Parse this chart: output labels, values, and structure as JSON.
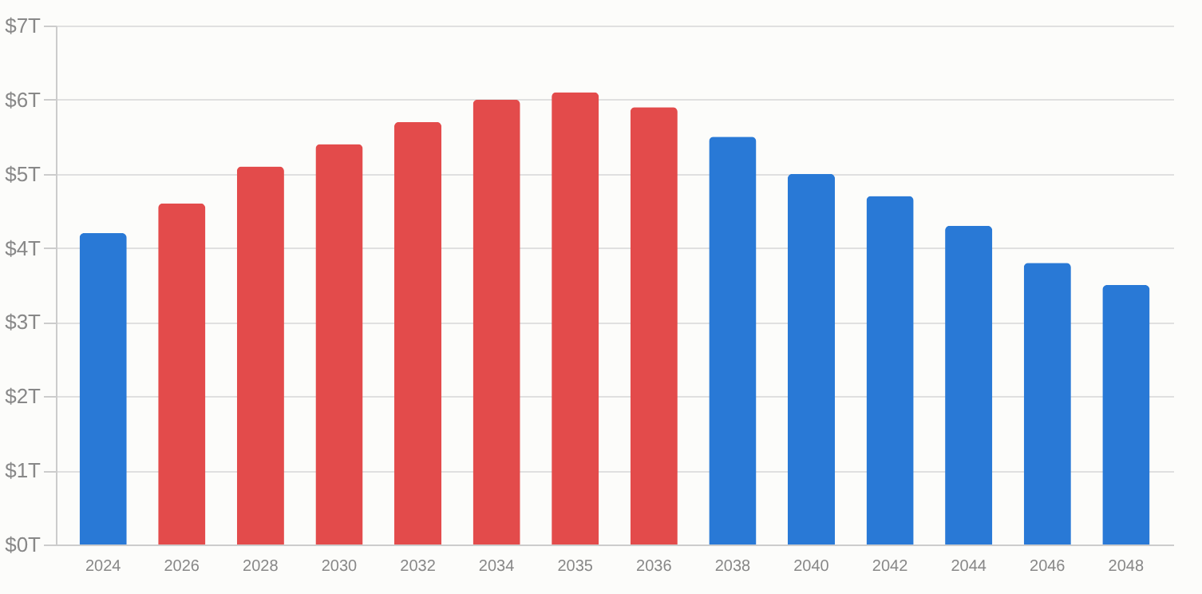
{
  "chart_data": {
    "type": "bar",
    "categories": [
      "2024",
      "2026",
      "2028",
      "2030",
      "2032",
      "2034",
      "2035",
      "2036",
      "2038",
      "2040",
      "2042",
      "2044",
      "2046",
      "2048"
    ],
    "values": [
      4.2,
      4.6,
      5.1,
      5.4,
      5.7,
      6.0,
      6.1,
      5.9,
      5.5,
      5.0,
      4.7,
      4.3,
      3.8,
      3.5
    ],
    "colors": [
      "#2979d6",
      "#e34b4b",
      "#e34b4b",
      "#e34b4b",
      "#e34b4b",
      "#e34b4b",
      "#e34b4b",
      "#e34b4b",
      "#2979d6",
      "#2979d6",
      "#2979d6",
      "#2979d6",
      "#2979d6",
      "#2979d6"
    ],
    "ylim": [
      0,
      7
    ],
    "yticks": [
      {
        "value": 0,
        "label": "$0T"
      },
      {
        "value": 1,
        "label": "$1T"
      },
      {
        "value": 2,
        "label": "$2T"
      },
      {
        "value": 3,
        "label": "$3T"
      },
      {
        "value": 4,
        "label": "$4T"
      },
      {
        "value": 5,
        "label": "$5T"
      },
      {
        "value": 6,
        "label": "$6T"
      },
      {
        "value": 7,
        "label": "$7T"
      }
    ],
    "grid": "y"
  }
}
